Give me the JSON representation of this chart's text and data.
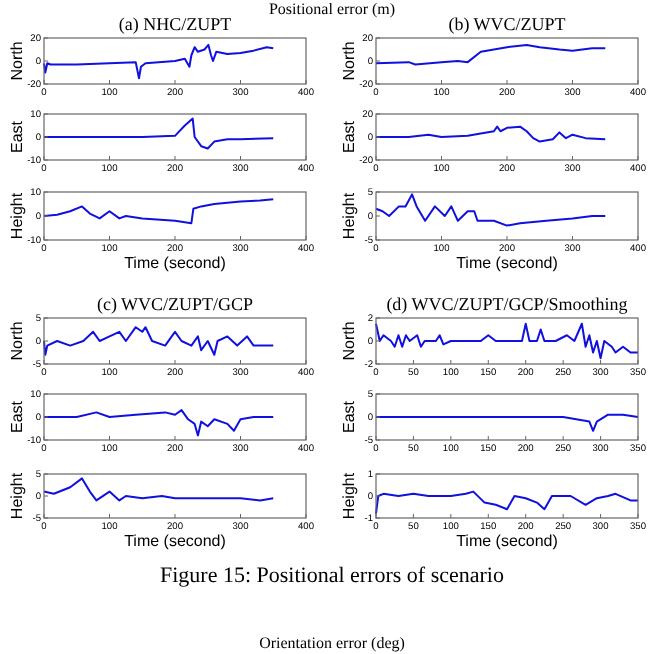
{
  "chart_data": [
    {
      "type": "line",
      "title": "(a) NHC/ZUPT",
      "ylabel": "North",
      "annotations": [
        "Positional error (m)"
      ],
      "xlim": [
        0,
        400
      ],
      "xticks": [
        0,
        100,
        200,
        300,
        400
      ],
      "ylim": [
        -20,
        20
      ],
      "yticks": [
        -20,
        0,
        20
      ],
      "grid": false,
      "x": [
        0,
        2,
        5,
        10,
        50,
        100,
        140,
        145,
        148,
        155,
        200,
        215,
        222,
        225,
        230,
        235,
        245,
        251,
        255,
        258,
        263,
        280,
        300,
        320,
        340,
        350
      ],
      "series": [
        {
          "color": "#1010e0",
          "values": [
            -2,
            -10,
            -2,
            -3,
            -3,
            -2,
            -1,
            -15,
            -5,
            -2,
            0,
            2,
            -5,
            5,
            12,
            8,
            10,
            14,
            5,
            0,
            8,
            6,
            7,
            9,
            12,
            11
          ]
        }
      ]
    },
    {
      "type": "line",
      "ylabel": "East",
      "xlim": [
        0,
        400
      ],
      "xticks": [
        0,
        100,
        200,
        300,
        400
      ],
      "ylim": [
        -10,
        10
      ],
      "yticks": [
        -10,
        0,
        10
      ],
      "grid": false,
      "x": [
        0,
        50,
        100,
        150,
        200,
        205,
        215,
        227,
        230,
        240,
        250,
        260,
        280,
        300,
        350
      ],
      "series": [
        {
          "color": "#1010e0",
          "values": [
            0,
            0,
            0,
            0,
            0.5,
            2,
            5,
            8,
            0,
            -4,
            -5,
            -2,
            -1,
            -1,
            -0.5
          ]
        }
      ]
    },
    {
      "type": "line",
      "ylabel": "Height",
      "xlabel": "Time (second)",
      "xlim": [
        0,
        400
      ],
      "xticks": [
        0,
        100,
        200,
        300,
        400
      ],
      "ylim": [
        -10,
        10
      ],
      "yticks": [
        -10,
        0,
        10
      ],
      "grid": false,
      "x": [
        0,
        20,
        40,
        58,
        70,
        85,
        100,
        115,
        125,
        150,
        200,
        225,
        228,
        240,
        260,
        300,
        330,
        350
      ],
      "series": [
        {
          "color": "#1010e0",
          "values": [
            0,
            0.5,
            2,
            4,
            1,
            -1,
            2,
            -1,
            0,
            -1,
            -2,
            -3,
            3,
            4,
            5,
            6,
            6.5,
            7
          ]
        }
      ]
    },
    {
      "type": "line",
      "title": "(b) WVC/ZUPT",
      "ylabel": "North",
      "xlim": [
        0,
        400
      ],
      "xticks": [
        0,
        100,
        200,
        300,
        400
      ],
      "ylim": [
        -20,
        20
      ],
      "yticks": [
        -20,
        0,
        20
      ],
      "grid": false,
      "x": [
        0,
        50,
        60,
        100,
        125,
        140,
        160,
        180,
        200,
        230,
        250,
        280,
        300,
        330,
        350
      ],
      "series": [
        {
          "color": "#1010e0",
          "values": [
            -2,
            -1,
            -3,
            -1,
            0,
            -1,
            8,
            10,
            12,
            14,
            12,
            10,
            9,
            11,
            11
          ]
        }
      ]
    },
    {
      "type": "line",
      "ylabel": "East",
      "xlim": [
        0,
        400
      ],
      "xticks": [
        0,
        100,
        200,
        300,
        400
      ],
      "ylim": [
        -20,
        20
      ],
      "yticks": [
        -20,
        0,
        20
      ],
      "grid": false,
      "x": [
        0,
        50,
        80,
        100,
        140,
        160,
        180,
        185,
        190,
        200,
        220,
        230,
        240,
        250,
        270,
        280,
        290,
        300,
        320,
        350
      ],
      "series": [
        {
          "color": "#1010e0",
          "values": [
            0,
            0,
            2,
            0,
            1,
            3,
            5,
            9,
            5,
            8,
            9,
            5,
            -1,
            -4,
            -2,
            4,
            -1,
            2,
            -1,
            -2
          ]
        }
      ]
    },
    {
      "type": "line",
      "ylabel": "Height",
      "xlabel": "Time (second)",
      "xlim": [
        0,
        400
      ],
      "xticks": [
        0,
        100,
        200,
        300,
        400
      ],
      "ylim": [
        -5,
        5
      ],
      "yticks": [
        -5,
        0,
        5
      ],
      "grid": false,
      "x": [
        0,
        10,
        20,
        35,
        45,
        55,
        62,
        75,
        90,
        105,
        115,
        125,
        140,
        150,
        155,
        180,
        200,
        220,
        260,
        300,
        330,
        350
      ],
      "series": [
        {
          "color": "#1010e0",
          "values": [
            1.5,
            1,
            0,
            2,
            2,
            4.5,
            2,
            -1,
            2,
            0,
            2,
            -1,
            1,
            1,
            -1,
            -1,
            -2,
            -1.5,
            -1,
            -0.5,
            0,
            0
          ]
        }
      ]
    },
    {
      "type": "line",
      "title": "(c) WVC/ZUPT/GCP",
      "ylabel": "North",
      "xlim": [
        0,
        400
      ],
      "xticks": [
        0,
        100,
        200,
        300,
        400
      ],
      "ylim": [
        -5,
        5
      ],
      "yticks": [
        -5,
        0,
        5
      ],
      "grid": false,
      "x": [
        0,
        2,
        5,
        20,
        40,
        60,
        75,
        85,
        100,
        115,
        125,
        140,
        150,
        155,
        165,
        185,
        195,
        200,
        210,
        225,
        235,
        240,
        250,
        260,
        265,
        280,
        295,
        310,
        320,
        350
      ],
      "series": [
        {
          "color": "#1010e0",
          "values": [
            0,
            -3,
            -1,
            0,
            -1,
            0,
            2,
            0,
            1,
            2,
            0,
            3,
            2,
            3,
            0,
            -1,
            1,
            2,
            0,
            -1,
            1,
            -2,
            0,
            -3,
            0,
            1,
            -1,
            1,
            -1,
            -1
          ]
        }
      ]
    },
    {
      "type": "line",
      "ylabel": "East",
      "xlim": [
        0,
        400
      ],
      "xticks": [
        0,
        100,
        200,
        300,
        400
      ],
      "ylim": [
        -10,
        10
      ],
      "yticks": [
        -10,
        0,
        10
      ],
      "grid": false,
      "x": [
        0,
        50,
        80,
        100,
        140,
        185,
        200,
        210,
        220,
        230,
        235,
        240,
        250,
        260,
        280,
        290,
        300,
        320,
        350
      ],
      "series": [
        {
          "color": "#1010e0",
          "values": [
            0,
            0,
            2,
            0,
            1,
            2,
            1,
            3,
            -1,
            -3,
            -8,
            -2,
            -4,
            -1,
            -3,
            -6,
            -1,
            0,
            0
          ]
        }
      ]
    },
    {
      "type": "line",
      "ylabel": "Height",
      "xlabel": "Time (second)",
      "xlim": [
        0,
        400
      ],
      "xticks": [
        0,
        100,
        200,
        300,
        400
      ],
      "ylim": [
        -5,
        5
      ],
      "yticks": [
        -5,
        0,
        5
      ],
      "grid": false,
      "x": [
        0,
        15,
        40,
        58,
        70,
        80,
        100,
        115,
        125,
        150,
        180,
        200,
        250,
        300,
        330,
        350
      ],
      "series": [
        {
          "color": "#1010e0",
          "values": [
            1,
            0.5,
            2,
            4,
            1,
            -1,
            1,
            -1,
            0,
            -0.5,
            0,
            -0.5,
            -0.5,
            -0.5,
            -1,
            -0.5
          ]
        }
      ]
    },
    {
      "type": "line",
      "title": "(d) WVC/ZUPT/GCP/Smoothing",
      "ylabel": "North",
      "xlim": [
        0,
        350
      ],
      "xticks": [
        0,
        50,
        100,
        150,
        200,
        250,
        300,
        350
      ],
      "ylim": [
        -2,
        2
      ],
      "yticks": [
        -2,
        0,
        2
      ],
      "grid": false,
      "x": [
        0,
        5,
        10,
        20,
        25,
        30,
        35,
        40,
        45,
        55,
        60,
        65,
        80,
        85,
        90,
        100,
        120,
        140,
        150,
        160,
        195,
        200,
        205,
        215,
        220,
        225,
        240,
        255,
        265,
        275,
        280,
        285,
        290,
        295,
        300,
        305,
        315,
        320,
        330,
        340,
        350
      ],
      "series": [
        {
          "color": "#1010e0",
          "values": [
            1.5,
            0,
            0.5,
            0,
            -0.5,
            0.5,
            -0.5,
            0.5,
            0,
            0.5,
            -0.5,
            0,
            0,
            0.5,
            -0.3,
            0,
            0,
            0,
            0.5,
            0,
            0,
            1.5,
            0,
            0,
            1,
            0,
            0,
            0.5,
            0,
            1.5,
            -0.5,
            0.5,
            -1,
            0,
            -1.5,
            0,
            -0.5,
            -1,
            -0.5,
            -1,
            -1
          ]
        }
      ]
    },
    {
      "type": "line",
      "ylabel": "East",
      "xlim": [
        0,
        350
      ],
      "xticks": [
        0,
        50,
        100,
        150,
        200,
        250,
        300,
        350
      ],
      "ylim": [
        -5,
        5
      ],
      "yticks": [
        -5,
        0,
        5
      ],
      "grid": false,
      "x": [
        0,
        50,
        100,
        150,
        200,
        250,
        285,
        290,
        295,
        310,
        330,
        350
      ],
      "series": [
        {
          "color": "#1010e0",
          "values": [
            0,
            0,
            0,
            0,
            0,
            0,
            -1,
            -3,
            -1,
            0.5,
            0.5,
            0
          ]
        }
      ]
    },
    {
      "type": "line",
      "ylabel": "Height",
      "xlabel": "Time (second)",
      "annotations": [
        "Figure 15: Positional errors of scenario",
        "Orientation error (deg)"
      ],
      "xlim": [
        0,
        350
      ],
      "xticks": [
        0,
        50,
        100,
        150,
        200,
        250,
        300,
        350
      ],
      "ylim": [
        -1,
        1
      ],
      "yticks": [
        -1,
        0,
        1
      ],
      "grid": false,
      "x": [
        0,
        3,
        10,
        30,
        50,
        70,
        100,
        120,
        130,
        145,
        160,
        175,
        185,
        200,
        215,
        225,
        235,
        260,
        280,
        295,
        310,
        320,
        340,
        350
      ],
      "series": [
        {
          "color": "#1010e0",
          "values": [
            -0.8,
            0,
            0.1,
            0,
            0.1,
            0,
            0,
            0.1,
            0.2,
            -0.3,
            -0.4,
            -0.6,
            0,
            -0.1,
            -0.3,
            -0.6,
            0,
            0,
            -0.4,
            -0.1,
            0,
            0.1,
            -0.2,
            -0.2
          ]
        }
      ]
    }
  ]
}
